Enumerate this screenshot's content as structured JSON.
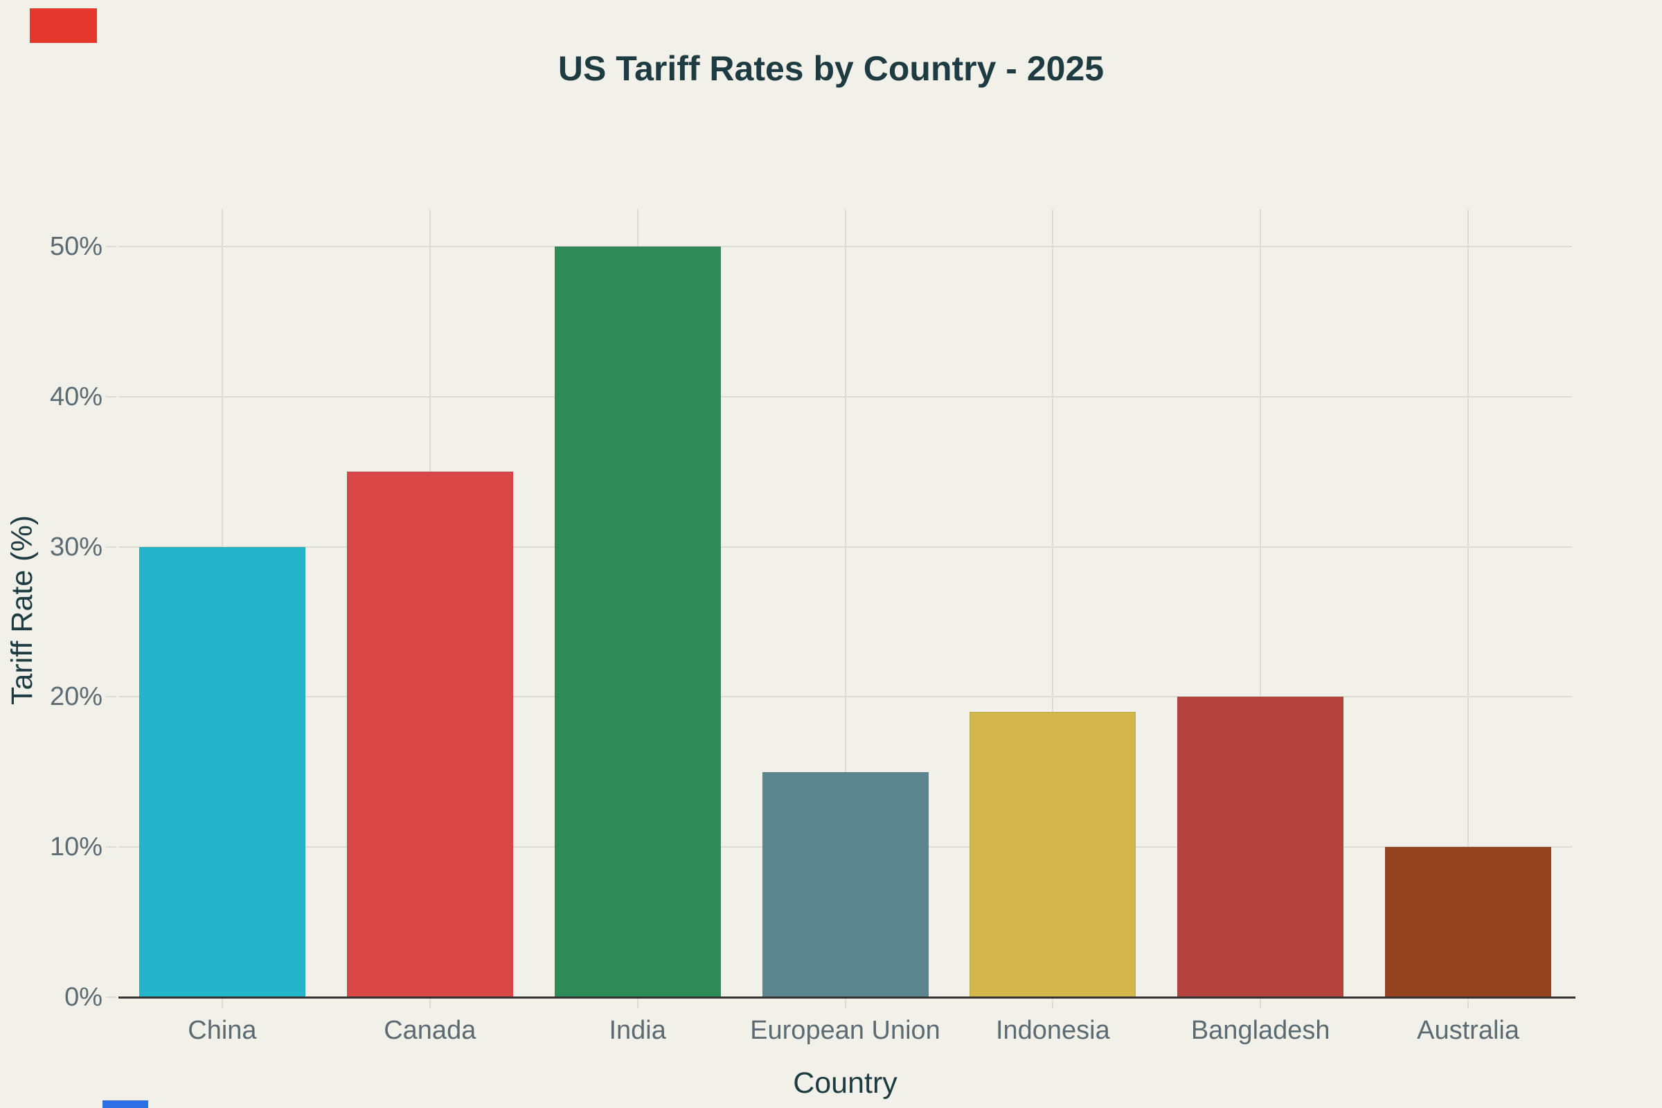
{
  "page": {
    "background": "#f1f1ea"
  },
  "chart_data": {
    "type": "bar",
    "title": "US Tariff Rates by Country - 2025",
    "xlabel": "Country",
    "ylabel": "Tariff Rate (%)",
    "categories": [
      "China",
      "Canada",
      "India",
      "European Union",
      "Indonesia",
      "Bangladesh",
      "Australia"
    ],
    "values": [
      30,
      35,
      50,
      15,
      19,
      20,
      10
    ],
    "bar_colors": [
      "#24b5cb",
      "#d84646",
      "#2e8b57",
      "#5b868f",
      "#d2b84b",
      "#b4423d",
      "#95421f"
    ],
    "ylim": [
      0,
      52.5
    ],
    "ytick_values": [
      0,
      10,
      20,
      30,
      40,
      50
    ],
    "ytick_labels": [
      "0%",
      "10%",
      "20%",
      "30%",
      "40%",
      "50%"
    ],
    "grid": true,
    "legend": false
  },
  "colors": {
    "background": "#f1f1ea",
    "heading_text": "#1d3b40",
    "tick_text": "#5c6a72",
    "gridline": "#dcdcd3",
    "axis_line": "#33332f"
  },
  "artifacts": {
    "top_left_fragment_color": "#e5372e",
    "bottom_left_fragment_color": "#2f6fe4"
  }
}
